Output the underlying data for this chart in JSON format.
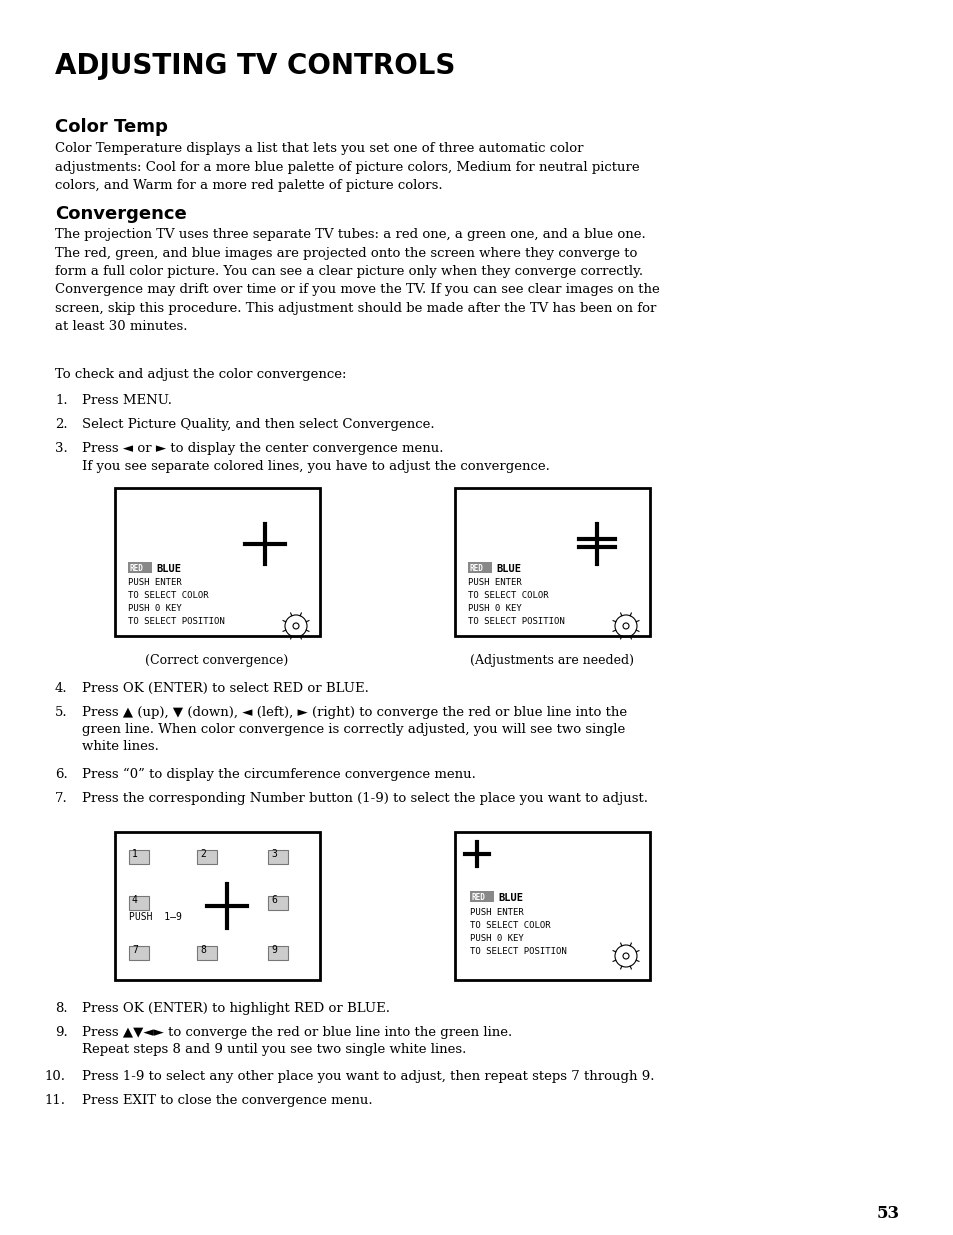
{
  "title": "ADJUSTING TV CONTROLS",
  "section1_title": "Color Temp",
  "section1_body": "Color Temperature displays a list that lets you set one of three automatic color\nadjustments: Cool for a more blue palette of picture colors, Medium for neutral picture\ncolors, and Warm for a more red palette of picture colors.",
  "section2_title": "Convergence",
  "section2_body": "The projection TV uses three separate TV tubes: a red one, a green one, and a blue one.\nThe red, green, and blue images are projected onto the screen where they converge to\nform a full color picture. You can see a clear picture only when they converge correctly.\nConvergence may drift over time or if you move the TV. If you can see clear images on the\nscreen, skip this procedure. This adjustment should be made after the TV has been on for\nat least 30 minutes.",
  "intro_line": "To check and adjust the color convergence:",
  "step1": "Press MENU.",
  "step2": "Select Picture Quality, and then select Convergence.",
  "step3a": "Press ◄ or ► to display the center convergence menu.",
  "step3b": "If you see separate colored lines, you have to adjust the convergence.",
  "caption_left": "(Correct convergence)",
  "caption_right": "(Adjustments are needed)",
  "step4": "Press OK (ENTER) to select RED or BLUE.",
  "step5a": "Press ▲ (up), ▼ (down), ◄ (left), ► (right) to converge the red or blue line into the",
  "step5b": "green line. When color convergence is correctly adjusted, you will see two single",
  "step5c": "white lines.",
  "step6": "Press “0” to display the circumference convergence menu.",
  "step7": "Press the corresponding Number button (1-9) to select the place you want to adjust.",
  "step8": "Press OK (ENTER) to highlight RED or BLUE.",
  "step9a": "Press ▲▼◄► to converge the red or blue line into the green line.",
  "step9b": "Repeat steps 8 and 9 until you see two single white lines.",
  "step10": "Press 1-9 to select any other place you want to adjust, then repeat steps 7 through 9.",
  "step11": "Press EXIT to close the convergence menu.",
  "page_number": "53",
  "bg_color": "#ffffff"
}
